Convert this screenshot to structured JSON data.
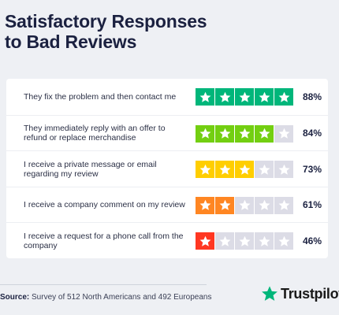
{
  "title_line1": "Satisfactory Responses",
  "title_line2": "to Bad Reviews",
  "source_label": "Source:",
  "source_text": "Survey of 512 North Americans and 492 Europeans",
  "brand": "Trustpilot",
  "star_empty_color": "#dcdce6",
  "brand_star_color": "#00b67a",
  "chart_data": {
    "type": "bar",
    "title": "Satisfactory Responses to Bad Reviews",
    "categories": [
      "They fix the problem and then contact me",
      "They immediately reply with an offer to refund or replace merchandise",
      "I receive a private message or email regarding my review",
      "I receive a company comment on my review",
      "I receive a request for a phone call from the company"
    ],
    "values": [
      88,
      84,
      73,
      61,
      46
    ],
    "value_labels": [
      "88%",
      "84%",
      "73%",
      "61%",
      "46%"
    ],
    "stars_filled": [
      5,
      4,
      3,
      2,
      1
    ],
    "stars_total": 5,
    "star_colors": [
      "#00b67a",
      "#73cf11",
      "#ffce00",
      "#ff8622",
      "#ff3722"
    ],
    "ylim": [
      0,
      100
    ]
  }
}
